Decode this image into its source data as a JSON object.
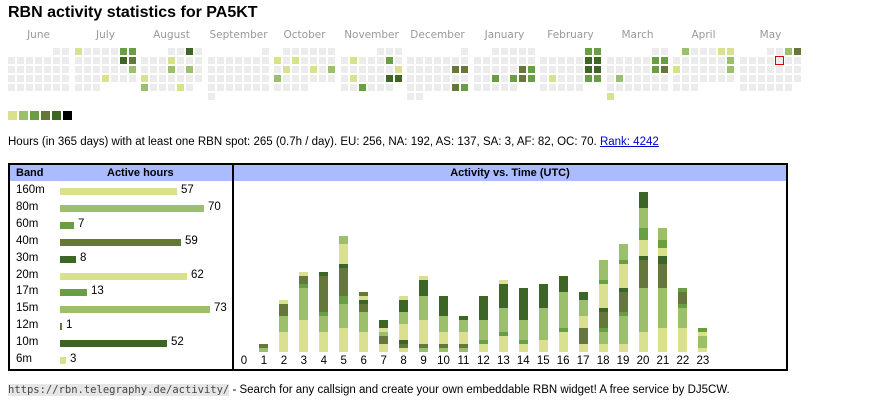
{
  "title": "RBN activity statistics for PA5KT",
  "colors": {
    "empty": "#ececec",
    "levels": [
      "#d9e08e",
      "#9bbf6a",
      "#6a9e44",
      "#65783a",
      "#3c6526",
      "#000000"
    ],
    "today_outline": "#e00000",
    "header_bg": "#aabbff",
    "link": "#0000cc"
  },
  "calendar": {
    "months": [
      {
        "label": "June",
        "start_col": 5,
        "days": 30,
        "active": {}
      },
      {
        "label": "July",
        "start_col": 0,
        "days": 31,
        "active": {
          "1": 0,
          "6": 2,
          "7": 2,
          "13": 4,
          "14": 3,
          "21": 1,
          "25": 0
        }
      },
      {
        "label": "August",
        "start_col": 3,
        "days": 31,
        "active": {
          "3": 4,
          "8": 0,
          "15": 1,
          "17": 1,
          "19": 0,
          "26": 1,
          "30": 0
        }
      },
      {
        "label": "September",
        "start_col": 6,
        "days": 30,
        "active": {}
      },
      {
        "label": "October",
        "start_col": 1,
        "days": 31,
        "active": {
          "7": 0,
          "9": 0,
          "15": 0,
          "18": 0,
          "20": 1,
          "21": 1
        }
      },
      {
        "label": "November",
        "start_col": 4,
        "days": 30,
        "active": {
          "5": 0,
          "9": 2,
          "17": 0,
          "19": 0,
          "23": 4,
          "24": 4,
          "27": 2
        }
      },
      {
        "label": "December",
        "start_col": 6,
        "days": 31,
        "active": {
          "14": 3,
          "15": 3,
          "28": 3,
          "29": 2
        }
      },
      {
        "label": "January",
        "start_col": 2,
        "days": 31,
        "active": {
          "18": 3,
          "19": 2,
          "22": 2,
          "24": 2,
          "25": 3,
          "26": 2
        }
      },
      {
        "label": "February",
        "start_col": 5,
        "days": 28,
        "active": {
          "1": 2,
          "2": 2,
          "8": 4,
          "9": 4,
          "15": 4,
          "16": 4,
          "18": 0,
          "22": 2,
          "23": 2
        }
      },
      {
        "label": "March",
        "start_col": 5,
        "days": 31,
        "active": {
          "8": 2,
          "9": 2,
          "15": 2,
          "16": 3,
          "18": 1,
          "31": 0
        }
      },
      {
        "label": "April",
        "start_col": 1,
        "days": 30,
        "active": {
          "1": 1,
          "5": 0,
          "6": 0,
          "13": 1,
          "14": 0,
          "20": 1
        }
      },
      {
        "label": "May",
        "start_col": 3,
        "days": 31,
        "active": {
          "3": 1,
          "4": 3
        },
        "today": 9
      }
    ]
  },
  "summary": {
    "text": "Hours (in 365 days) with at least one RBN spot: 265 (0.7h / day). EU: 256, NA: 192, AS: 137, SA: 3, AF: 82, OC: 70.",
    "rank_link": "Rank: 4242"
  },
  "bands": {
    "header_band": "Band",
    "header_hours": "Active hours",
    "max": 73,
    "rows": [
      {
        "band": "160m",
        "hours": 57,
        "color": 0
      },
      {
        "band": "80m",
        "hours": 70,
        "color": 1
      },
      {
        "band": "60m",
        "hours": 7,
        "color": 2
      },
      {
        "band": "40m",
        "hours": 59,
        "color": 3
      },
      {
        "band": "30m",
        "hours": 8,
        "color": 4
      },
      {
        "band": "20m",
        "hours": 62,
        "color": 0
      },
      {
        "band": "17m",
        "hours": 13,
        "color": 2
      },
      {
        "band": "15m",
        "hours": 73,
        "color": 1
      },
      {
        "band": "12m",
        "hours": 1,
        "color": 3
      },
      {
        "band": "10m",
        "hours": 52,
        "color": 4
      },
      {
        "band": "6m",
        "hours": 3,
        "color": 0
      }
    ]
  },
  "chart_data": {
    "type": "bar",
    "title": "Activity vs. Time (UTC)",
    "stacked": true,
    "categories": [
      "0",
      "1",
      "2",
      "3",
      "4",
      "5",
      "6",
      "7",
      "8",
      "9",
      "10",
      "11",
      "12",
      "13",
      "14",
      "15",
      "16",
      "17",
      "18",
      "19",
      "20",
      "21",
      "22",
      "23"
    ],
    "ylim": [
      0,
      42
    ],
    "stacks": [
      [],
      [
        [
          1,
          1
        ],
        [
          3,
          1
        ]
      ],
      [
        [
          0,
          5
        ],
        [
          1,
          4
        ],
        [
          3,
          3
        ],
        [
          0,
          1
        ]
      ],
      [
        [
          0,
          8
        ],
        [
          1,
          8
        ],
        [
          2,
          1
        ],
        [
          3,
          2
        ],
        [
          0,
          1
        ]
      ],
      [
        [
          0,
          5
        ],
        [
          1,
          4
        ],
        [
          2,
          1
        ],
        [
          3,
          9
        ],
        [
          4,
          1
        ]
      ],
      [
        [
          0,
          6
        ],
        [
          1,
          6
        ],
        [
          2,
          2
        ],
        [
          3,
          7
        ],
        [
          4,
          1
        ],
        [
          0,
          5
        ],
        [
          1,
          2
        ]
      ],
      [
        [
          0,
          5
        ],
        [
          1,
          5
        ],
        [
          3,
          2
        ],
        [
          4,
          1
        ],
        [
          0,
          1
        ],
        [
          3,
          1
        ]
      ],
      [
        [
          0,
          2
        ],
        [
          3,
          2
        ],
        [
          1,
          1
        ],
        [
          0,
          1
        ],
        [
          4,
          2
        ]
      ],
      [
        [
          0,
          1
        ],
        [
          3,
          1
        ],
        [
          4,
          1
        ],
        [
          0,
          4
        ],
        [
          1,
          3
        ],
        [
          4,
          3
        ],
        [
          0,
          1
        ]
      ],
      [
        [
          1,
          1
        ],
        [
          3,
          1
        ],
        [
          0,
          6
        ],
        [
          1,
          6
        ],
        [
          4,
          4
        ],
        [
          0,
          1
        ]
      ],
      [
        [
          1,
          1
        ],
        [
          3,
          1
        ],
        [
          0,
          3
        ],
        [
          1,
          4
        ],
        [
          4,
          5
        ]
      ],
      [
        [
          1,
          1
        ],
        [
          3,
          1
        ],
        [
          0,
          3
        ],
        [
          1,
          3
        ],
        [
          4,
          1
        ]
      ],
      [
        [
          0,
          2
        ],
        [
          2,
          1
        ],
        [
          1,
          5
        ],
        [
          4,
          6
        ]
      ],
      [
        [
          0,
          4
        ],
        [
          2,
          1
        ],
        [
          1,
          6
        ],
        [
          4,
          6
        ],
        [
          0,
          1
        ]
      ],
      [
        [
          0,
          2
        ],
        [
          2,
          1
        ],
        [
          1,
          5
        ],
        [
          4,
          8
        ]
      ],
      [
        [
          0,
          3
        ],
        [
          1,
          8
        ],
        [
          4,
          6
        ]
      ],
      [
        [
          0,
          5
        ],
        [
          2,
          1
        ],
        [
          1,
          9
        ],
        [
          4,
          4
        ]
      ],
      [
        [
          0,
          2
        ],
        [
          3,
          4
        ],
        [
          0,
          3
        ],
        [
          1,
          4
        ],
        [
          4,
          2
        ]
      ],
      [
        [
          0,
          2
        ],
        [
          1,
          3
        ],
        [
          2,
          1
        ],
        [
          3,
          4
        ],
        [
          4,
          1
        ],
        [
          0,
          6
        ],
        [
          2,
          1
        ],
        [
          1,
          5
        ]
      ],
      [
        [
          0,
          2
        ],
        [
          1,
          7
        ],
        [
          2,
          1
        ],
        [
          3,
          5
        ],
        [
          4,
          1
        ],
        [
          0,
          6
        ],
        [
          2,
          1
        ],
        [
          1,
          4
        ]
      ],
      [
        [
          0,
          5
        ],
        [
          1,
          11
        ],
        [
          3,
          7
        ],
        [
          4,
          1
        ],
        [
          0,
          4
        ],
        [
          2,
          3
        ],
        [
          1,
          5
        ],
        [
          4,
          4
        ]
      ],
      [
        [
          0,
          6
        ],
        [
          1,
          10
        ],
        [
          3,
          6
        ],
        [
          4,
          2
        ],
        [
          0,
          2
        ],
        [
          2,
          2
        ],
        [
          1,
          3
        ]
      ],
      [
        [
          0,
          6
        ],
        [
          1,
          5
        ],
        [
          2,
          1
        ],
        [
          3,
          3
        ],
        [
          2,
          1
        ]
      ],
      [
        [
          0,
          1
        ],
        [
          1,
          3
        ],
        [
          0,
          1
        ],
        [
          2,
          1
        ]
      ]
    ]
  },
  "footer": {
    "url": "https://rbn.telegraphy.de/activity/",
    "text": " - Search for any callsign and create your own embeddable RBN widget! A free service by DJ5CW."
  }
}
